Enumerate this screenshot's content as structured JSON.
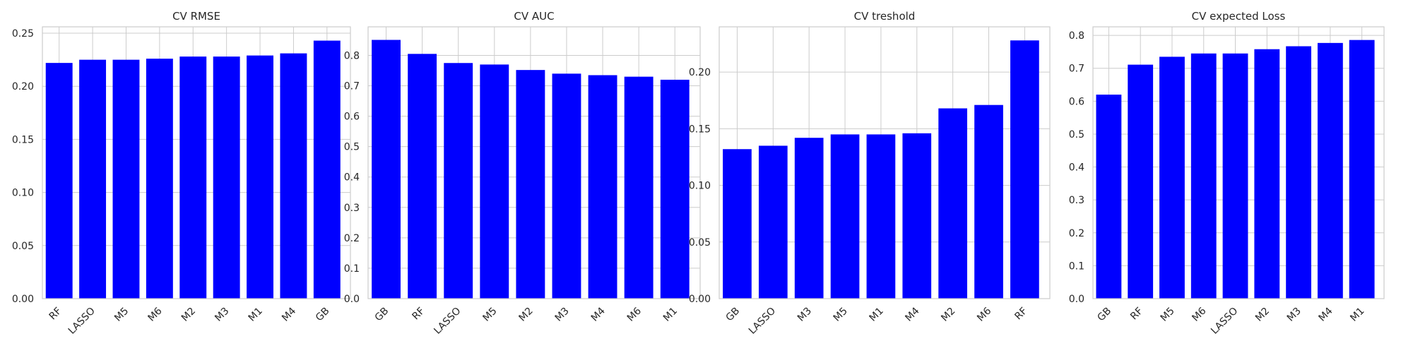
{
  "chart_data": [
    {
      "type": "bar",
      "title": "CV RMSE",
      "categories": [
        "RF",
        "LASSO",
        "M5",
        "M6",
        "M2",
        "M3",
        "M1",
        "M4",
        "GB"
      ],
      "values": [
        0.222,
        0.225,
        0.225,
        0.226,
        0.228,
        0.228,
        0.229,
        0.231,
        0.243
      ],
      "yticks": [
        "0.00",
        "0.05",
        "0.10",
        "0.15",
        "0.20",
        "0.25"
      ],
      "ylim": [
        0,
        0.256
      ],
      "bar_color": "#0000ff",
      "grid": true
    },
    {
      "type": "bar",
      "title": "CV AUC",
      "categories": [
        "GB",
        "RF",
        "LASSO",
        "M5",
        "M2",
        "M3",
        "M4",
        "M6",
        "M1"
      ],
      "values": [
        0.851,
        0.805,
        0.775,
        0.77,
        0.752,
        0.74,
        0.735,
        0.73,
        0.72
      ],
      "yticks": [
        "0.0",
        "0.1",
        "0.2",
        "0.3",
        "0.4",
        "0.5",
        "0.6",
        "0.7",
        "0.8"
      ],
      "ylim": [
        0,
        0.894
      ],
      "bar_color": "#0000ff",
      "grid": true
    },
    {
      "type": "bar",
      "title": "CV treshold",
      "categories": [
        "GB",
        "LASSO",
        "M3",
        "M5",
        "M1",
        "M4",
        "M2",
        "M6",
        "RF"
      ],
      "values": [
        0.132,
        0.135,
        0.142,
        0.145,
        0.145,
        0.146,
        0.168,
        0.171,
        0.228
      ],
      "yticks": [
        "0.00",
        "0.05",
        "0.10",
        "0.15",
        "0.20"
      ],
      "ylim": [
        0,
        0.24
      ],
      "bar_color": "#0000ff",
      "grid": true
    },
    {
      "type": "bar",
      "title": "CV expected Loss",
      "categories": [
        "GB",
        "RF",
        "M5",
        "M6",
        "LASSO",
        "M2",
        "M3",
        "M4",
        "M1"
      ],
      "values": [
        0.62,
        0.711,
        0.735,
        0.745,
        0.745,
        0.758,
        0.767,
        0.777,
        0.786
      ],
      "yticks": [
        "0.0",
        "0.1",
        "0.2",
        "0.3",
        "0.4",
        "0.5",
        "0.6",
        "0.7",
        "0.8"
      ],
      "ylim": [
        0,
        0.826
      ],
      "bar_color": "#0000ff",
      "grid": true
    }
  ]
}
